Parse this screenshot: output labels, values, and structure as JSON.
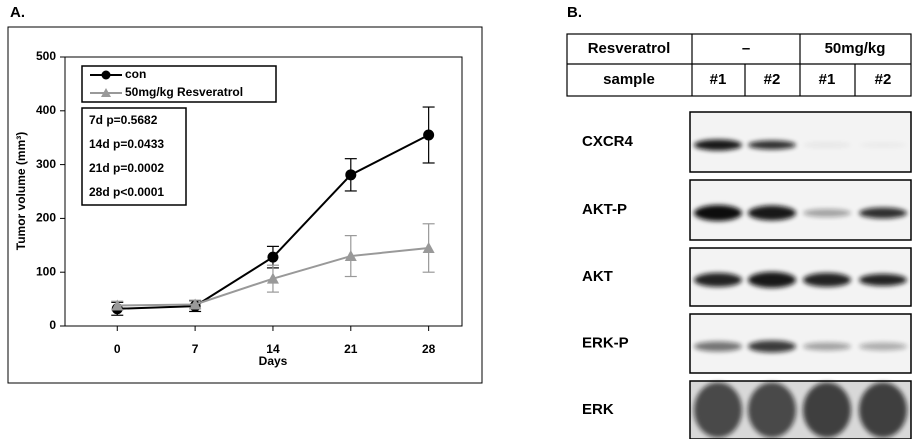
{
  "panel_a": {
    "label": "A."
  },
  "chart_data": {
    "type": "line",
    "x_label": "Days",
    "y_label": "Tumor volume (mm³)",
    "x": [
      0,
      7,
      14,
      21,
      28
    ],
    "xlim": [
      -4.7,
      31
    ],
    "xticks": [
      0,
      7,
      14,
      21,
      28
    ],
    "ylim": [
      0,
      500
    ],
    "yticks": [
      0,
      100,
      200,
      300,
      400,
      500
    ],
    "grid": false,
    "series": [
      {
        "name": "con",
        "color": "#000000",
        "marker": "circle",
        "values": [
          32,
          37,
          128,
          281,
          355
        ],
        "errors": [
          12,
          10,
          20,
          30,
          52
        ]
      },
      {
        "name": "50mg/kg Resveratrol",
        "color": "#999999",
        "marker": "triangle",
        "values": [
          38,
          40,
          88,
          130,
          145
        ],
        "errors": [
          8,
          8,
          25,
          38,
          45
        ]
      }
    ],
    "stats": [
      "7d p=0.5682",
      "14d p=0.0433",
      "21d p=0.0002",
      "28d p<0.0001"
    ]
  },
  "panel_b": {
    "label": "B.",
    "header": {
      "row1": [
        "Resveratrol",
        "–",
        "50mg/kg"
      ],
      "row2": [
        "sample",
        "#1",
        "#2",
        "#1",
        "#2"
      ]
    },
    "blots": [
      "CXCR4",
      "AKT-P",
      "AKT",
      "ERK-P",
      "ERK"
    ]
  }
}
